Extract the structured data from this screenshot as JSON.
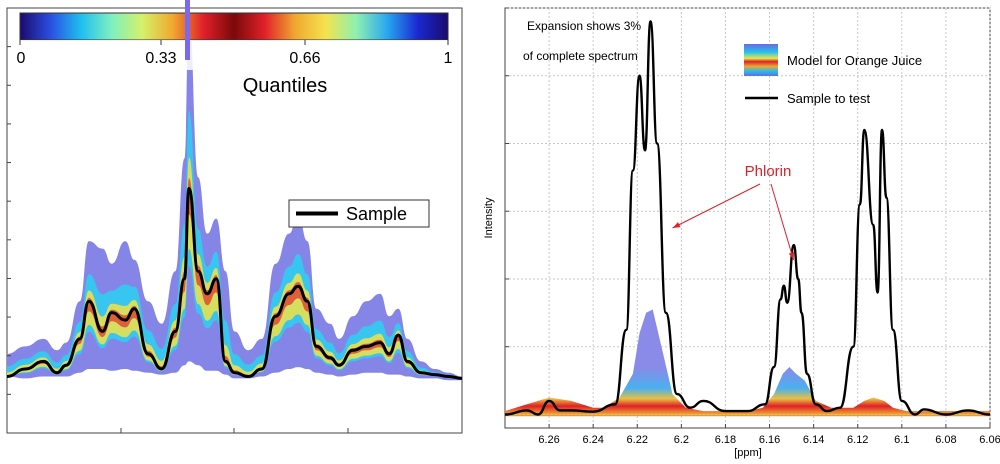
{
  "colors": {
    "quantile_stops": [
      "#1a0a6e",
      "#2a4fe0",
      "#1fbff0",
      "#7ef0c0",
      "#d6f06a",
      "#f0a830",
      "#e0202a",
      "#7a0a0a",
      "#e0202a",
      "#f0a830",
      "#f4e250",
      "#8ef0b0",
      "#2aa8f0",
      "#1a2ad0",
      "#1a0a6e"
    ],
    "envelope": "#8585e8",
    "sample_line": "#000000",
    "annotation": "#e0202a",
    "grid": "#c8c8c8"
  },
  "chart_data": [
    {
      "type": "area",
      "title": "Quantiles",
      "colorbar": {
        "label": "Quantiles",
        "ticks": [
          "0",
          "0.33",
          "0.66",
          "1"
        ],
        "range": [
          0,
          1
        ]
      },
      "legend": {
        "entries": [
          "Sample"
        ],
        "placement": "center-right"
      },
      "x_range": [
        0,
        100
      ],
      "y_range": [
        0,
        100
      ],
      "x": [
        0,
        4,
        8,
        11,
        13,
        16,
        18,
        21,
        23,
        26,
        28,
        31,
        34,
        37,
        39,
        40,
        42,
        44,
        46,
        48,
        50,
        53,
        56,
        59,
        62,
        64,
        66,
        68,
        71,
        73,
        76,
        79,
        82,
        84,
        86,
        88,
        91,
        94,
        97,
        100
      ],
      "series": [
        {
          "name": "upper_envelope",
          "values": [
            8,
            10,
            12,
            9,
            11,
            22,
            38,
            36,
            32,
            38,
            33,
            22,
            16,
            30,
            60,
            98,
            55,
            40,
            44,
            30,
            14,
            9,
            12,
            32,
            40,
            45,
            38,
            20,
            16,
            12,
            18,
            22,
            24,
            18,
            20,
            12,
            6,
            4,
            3,
            2
          ]
        },
        {
          "name": "lower_envelope",
          "values": [
            2,
            1.5,
            2,
            2,
            2,
            3,
            4,
            4,
            3.5,
            4,
            3.5,
            3,
            2.5,
            3,
            5,
            6,
            5,
            3.5,
            3.5,
            2.5,
            1.5,
            1.5,
            2,
            3,
            4,
            4.5,
            4,
            3,
            2.5,
            2,
            2.5,
            3,
            3,
            2.5,
            2.5,
            2,
            1.5,
            1.5,
            1,
            1
          ]
        },
        {
          "name": "Sample",
          "values": [
            2,
            4,
            6,
            3,
            5,
            12,
            22,
            14,
            19,
            17,
            20,
            8,
            4,
            14,
            28,
            52,
            30,
            24,
            28,
            6,
            3,
            2,
            4,
            18,
            24,
            26,
            22,
            10,
            7,
            5,
            9,
            10,
            11,
            8,
            13,
            6,
            3,
            2.5,
            2,
            1.5
          ]
        }
      ]
    },
    {
      "type": "line",
      "title": "",
      "xlabel": "[ppm]",
      "ylabel": "Intensity",
      "xlim": [
        6.28,
        6.06
      ],
      "ylim": [
        -0.04,
        1.2
      ],
      "x_ticks": [
        "6.26",
        "6.24",
        "6.22",
        "6.2",
        "6.18",
        "6.16",
        "6.14",
        "6.12",
        "6.1",
        "6.08",
        "6.06"
      ],
      "annotations": [
        {
          "text": "Expansion shows 3%"
        },
        {
          "text": "of complete spectrum"
        },
        {
          "text": "Phlorin",
          "points_to_ppm": [
            6.204,
            6.15
          ]
        }
      ],
      "legend": {
        "entries": [
          "Model for Orange Juice",
          "Sample to test"
        ],
        "placement": "top-right"
      },
      "sample_peaks_ppm": [
        6.219,
        6.214,
        6.153,
        6.149,
        6.145,
        6.117,
        6.109
      ],
      "series": [
        {
          "name": "Sample to test",
          "x": [
            6.28,
            6.27,
            6.265,
            6.26,
            6.255,
            6.25,
            6.24,
            6.23,
            6.225,
            6.222,
            6.219,
            6.2165,
            6.214,
            6.211,
            6.207,
            6.202,
            6.196,
            6.19,
            6.18,
            6.17,
            6.162,
            6.158,
            6.155,
            6.1535,
            6.152,
            6.149,
            6.147,
            6.1455,
            6.143,
            6.139,
            6.134,
            6.128,
            6.122,
            6.119,
            6.117,
            6.113,
            6.111,
            6.109,
            6.107,
            6.104,
            6.1,
            6.094,
            6.09,
            6.08,
            6.07,
            6.06
          ],
          "values": [
            0.0,
            0.012,
            0.0,
            0.04,
            0.012,
            0.012,
            0.008,
            0.03,
            0.25,
            0.72,
            1.0,
            0.78,
            1.16,
            0.8,
            0.3,
            0.06,
            0.02,
            0.04,
            0.01,
            0.01,
            0.03,
            0.14,
            0.34,
            0.38,
            0.33,
            0.5,
            0.4,
            0.3,
            0.12,
            0.03,
            0.01,
            0.02,
            0.2,
            0.62,
            0.84,
            0.56,
            0.36,
            0.84,
            0.64,
            0.25,
            0.04,
            0.0,
            0.015,
            0.0,
            0.012,
            0.0
          ]
        },
        {
          "name": "Model for Orange Juice (upper)",
          "x": [
            6.28,
            6.27,
            6.26,
            6.25,
            6.24,
            6.235,
            6.228,
            6.222,
            6.219,
            6.216,
            6.213,
            6.209,
            6.204,
            6.198,
            6.19,
            6.18,
            6.17,
            6.163,
            6.158,
            6.154,
            6.151,
            6.148,
            6.144,
            6.139,
            6.132,
            6.122,
            6.117,
            6.113,
            6.108,
            6.104,
            6.098,
            6.09,
            6.08,
            6.07,
            6.06
          ],
          "values": [
            0.01,
            0.03,
            0.05,
            0.04,
            0.02,
            0.02,
            0.05,
            0.12,
            0.24,
            0.3,
            0.31,
            0.2,
            0.06,
            0.02,
            0.01,
            0.01,
            0.01,
            0.02,
            0.06,
            0.12,
            0.14,
            0.12,
            0.1,
            0.04,
            0.02,
            0.02,
            0.04,
            0.05,
            0.04,
            0.02,
            0.01,
            0.01,
            0.01,
            0.01,
            0.01
          ]
        }
      ]
    }
  ]
}
